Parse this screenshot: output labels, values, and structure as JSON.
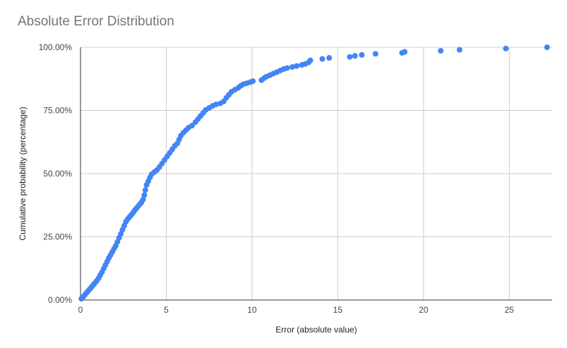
{
  "chart_data": {
    "type": "scatter",
    "title": "Absolute Error Distribution",
    "xlabel": "Error (absolute value)",
    "ylabel": "Cumulative probability (percentage)",
    "xlim": [
      0,
      27.5
    ],
    "ylim": [
      0,
      100
    ],
    "x_ticks": [
      0,
      5,
      10,
      15,
      20,
      25
    ],
    "x_tick_labels": [
      "0",
      "5",
      "10",
      "15",
      "20",
      "25"
    ],
    "y_ticks": [
      0,
      25,
      50,
      75,
      100
    ],
    "y_tick_labels": [
      "0.00%",
      "25.00%",
      "50.00%",
      "75.00%",
      "100.00%"
    ],
    "grid": true,
    "point_color": "#4285f4",
    "series": [
      {
        "points": [
          [
            0.05,
            0.5
          ],
          [
            0.15,
            1.2
          ],
          [
            0.25,
            2.0
          ],
          [
            0.35,
            2.8
          ],
          [
            0.45,
            3.6
          ],
          [
            0.55,
            4.4
          ],
          [
            0.65,
            5.2
          ],
          [
            0.75,
            6.0
          ],
          [
            0.85,
            6.8
          ],
          [
            0.95,
            7.6
          ],
          [
            1.05,
            8.6
          ],
          [
            1.15,
            9.8
          ],
          [
            1.25,
            11.0
          ],
          [
            1.35,
            12.4
          ],
          [
            1.45,
            13.8
          ],
          [
            1.55,
            15.2
          ],
          [
            1.65,
            16.6
          ],
          [
            1.75,
            17.8
          ],
          [
            1.85,
            19.0
          ],
          [
            1.95,
            20.2
          ],
          [
            2.05,
            21.4
          ],
          [
            2.15,
            23.0
          ],
          [
            2.25,
            24.6
          ],
          [
            2.35,
            26.2
          ],
          [
            2.45,
            27.8
          ],
          [
            2.55,
            29.4
          ],
          [
            2.65,
            31.0
          ],
          [
            2.75,
            32.0
          ],
          [
            2.85,
            32.8
          ],
          [
            2.95,
            33.6
          ],
          [
            3.05,
            34.4
          ],
          [
            3.15,
            35.4
          ],
          [
            3.25,
            36.2
          ],
          [
            3.35,
            37.0
          ],
          [
            3.45,
            37.8
          ],
          [
            3.55,
            38.6
          ],
          [
            3.65,
            39.8
          ],
          [
            3.72,
            41.5
          ],
          [
            3.78,
            43.5
          ],
          [
            3.85,
            45.5
          ],
          [
            3.95,
            47.0
          ],
          [
            4.05,
            48.5
          ],
          [
            4.15,
            49.8
          ],
          [
            4.3,
            50.6
          ],
          [
            4.45,
            51.4
          ],
          [
            4.6,
            52.6
          ],
          [
            4.75,
            54.0
          ],
          [
            4.9,
            55.4
          ],
          [
            5.05,
            56.8
          ],
          [
            5.2,
            58.2
          ],
          [
            5.35,
            59.6
          ],
          [
            5.5,
            61.0
          ],
          [
            5.65,
            62.0
          ],
          [
            5.75,
            63.5
          ],
          [
            5.85,
            65.0
          ],
          [
            6.0,
            66.2
          ],
          [
            6.15,
            67.2
          ],
          [
            6.3,
            68.2
          ],
          [
            6.5,
            69.0
          ],
          [
            6.7,
            70.4
          ],
          [
            6.85,
            71.6
          ],
          [
            7.0,
            72.8
          ],
          [
            7.15,
            74.0
          ],
          [
            7.3,
            75.2
          ],
          [
            7.5,
            76.0
          ],
          [
            7.7,
            76.8
          ],
          [
            7.9,
            77.4
          ],
          [
            8.15,
            77.8
          ],
          [
            8.35,
            78.6
          ],
          [
            8.5,
            80.0
          ],
          [
            8.65,
            81.2
          ],
          [
            8.8,
            82.4
          ],
          [
            9.0,
            83.2
          ],
          [
            9.2,
            84.0
          ],
          [
            9.35,
            84.8
          ],
          [
            9.5,
            85.4
          ],
          [
            9.7,
            85.8
          ],
          [
            9.9,
            86.2
          ],
          [
            10.05,
            86.6
          ],
          [
            10.55,
            87.0
          ],
          [
            10.7,
            87.8
          ],
          [
            10.85,
            88.4
          ],
          [
            11.05,
            89.0
          ],
          [
            11.25,
            89.6
          ],
          [
            11.45,
            90.2
          ],
          [
            11.65,
            90.8
          ],
          [
            11.85,
            91.4
          ],
          [
            12.05,
            91.8
          ],
          [
            12.35,
            92.2
          ],
          [
            12.6,
            92.6
          ],
          [
            12.9,
            93.0
          ],
          [
            13.1,
            93.4
          ],
          [
            13.3,
            94.0
          ],
          [
            13.4,
            94.8
          ],
          [
            14.1,
            95.4
          ],
          [
            14.5,
            95.8
          ],
          [
            15.7,
            96.2
          ],
          [
            16.0,
            96.6
          ],
          [
            16.4,
            97.0
          ],
          [
            17.2,
            97.4
          ],
          [
            18.75,
            97.8
          ],
          [
            18.9,
            98.2
          ],
          [
            21.0,
            98.6
          ],
          [
            22.1,
            99.0
          ],
          [
            24.8,
            99.5
          ],
          [
            27.2,
            100.0
          ]
        ]
      }
    ]
  }
}
